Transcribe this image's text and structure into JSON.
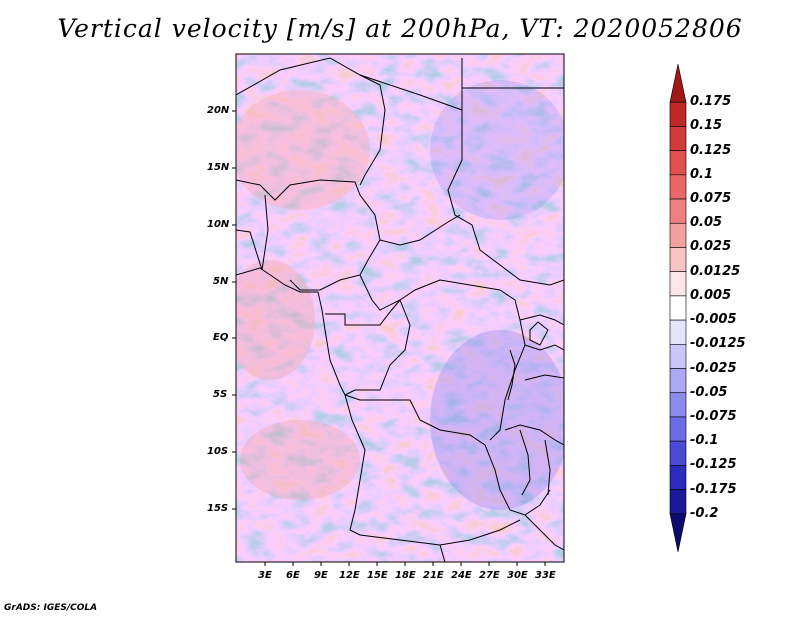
{
  "title": "Vertical velocity [m/s] at 200hPa, VT: 2020052806",
  "latitude_labels": [
    "20N",
    "15N",
    "10N",
    "5N",
    "EQ",
    "5S",
    "10S",
    "15S"
  ],
  "longitude_labels": [
    "3E",
    "6E",
    "9E",
    "12E",
    "15E",
    "18E",
    "21E",
    "24E",
    "27E",
    "30E",
    "33E"
  ],
  "colorbar": {
    "labels": [
      "0.175",
      "0.15",
      "0.125",
      "0.1",
      "0.075",
      "0.05",
      "0.025",
      "0.0125",
      "0.005",
      "-0.005",
      "-0.0125",
      "-0.025",
      "-0.05",
      "-0.075",
      "-0.1",
      "-0.125",
      "-0.175",
      "-0.2"
    ],
    "colors": [
      "#a01818",
      "#c02828",
      "#d03c3c",
      "#e05050",
      "#e86868",
      "#ee8080",
      "#f4a0a0",
      "#f8c4c4",
      "#fce6e6",
      "#ffffff",
      "#e4e4fc",
      "#c8c8f8",
      "#aaaaf4",
      "#8c8cee",
      "#6c6ce4",
      "#4a4ad4",
      "#2c2cbc",
      "#1a1a98",
      "#0c0c70"
    ]
  },
  "credit": "GrADS: IGES/COLA"
}
